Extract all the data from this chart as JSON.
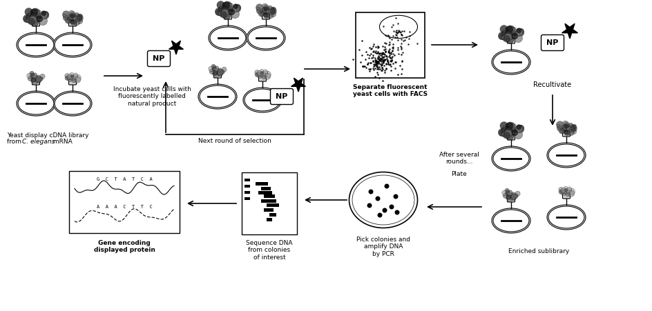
{
  "bg_color": "#ffffff",
  "fig_width": 9.44,
  "fig_height": 4.51,
  "labels": {
    "yeast_library_1": "Yeast display cDNA library",
    "yeast_library_2": "from ",
    "yeast_library_italic": "C. elegans",
    "yeast_library_3": " mRNA",
    "incubate": "Incubate yeast cells with\nfluorescently labelled\nnatural product",
    "separate": "Separate fluorescent\nyeast cells with FACS",
    "recultivate": "Recultivate",
    "next_round": "Next round of selection",
    "after_rounds": "After several\nrounds...",
    "plate": "Plate",
    "pick_colonies": "Pick colonies and\namplify DNA\nby PCR",
    "sequence": "Sequence DNA\nfrom colonies\nof interest",
    "gene_encoding": "Gene encoding\ndisplayed protein",
    "enriched": "Enriched sublibrary",
    "NP": "NP"
  },
  "colors": {
    "black": "#000000",
    "white": "#ffffff",
    "light_gray": "#f0f0f0",
    "gray": "#888888"
  }
}
